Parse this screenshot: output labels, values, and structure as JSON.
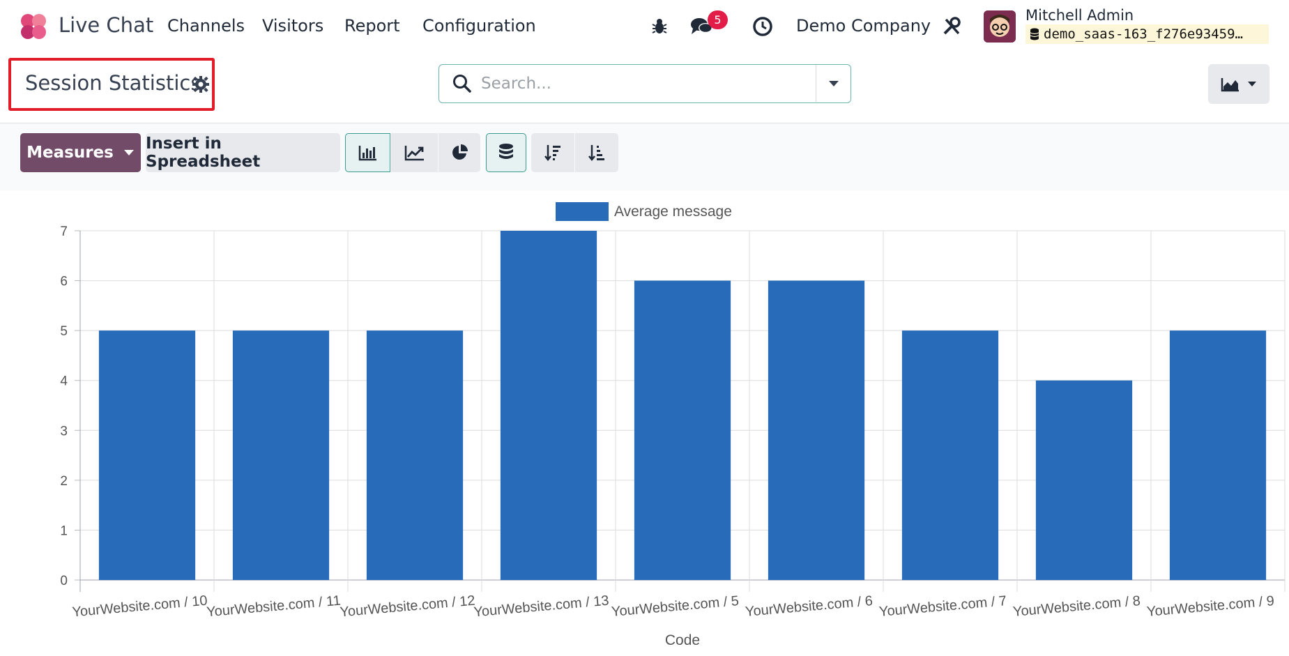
{
  "navbar": {
    "app_name": "Live Chat",
    "menu": [
      "Channels",
      "Visitors",
      "Report",
      "Configuration"
    ],
    "notification_count": "5",
    "company": "Demo Company",
    "user_name": "Mitchell Admin",
    "database": "demo_saas-163_f276e93459…"
  },
  "control_panel": {
    "title": "Session Statistics",
    "search_placeholder": "Search..."
  },
  "toolbar": {
    "measures_label": "Measures",
    "spreadsheet_label": "Insert in Spreadsheet"
  },
  "colors": {
    "bar": "#286bb8",
    "primary": "#714b67",
    "accent": "#3b9b90",
    "badge": "#e11d48"
  },
  "chart_data": {
    "type": "bar",
    "legend": "Average message",
    "xlabel": "Code",
    "ylabel": "",
    "ylim": [
      0,
      7
    ],
    "yticks": [
      0,
      1,
      2,
      3,
      4,
      5,
      6,
      7
    ],
    "grid": true,
    "legend_position": "top-center",
    "categories": [
      "YourWebsite.com / 10",
      "YourWebsite.com / 11",
      "YourWebsite.com / 12",
      "YourWebsite.com / 13",
      "YourWebsite.com / 5",
      "YourWebsite.com / 6",
      "YourWebsite.com / 7",
      "YourWebsite.com / 8",
      "YourWebsite.com / 9"
    ],
    "series": [
      {
        "name": "Average message",
        "values": [
          5,
          5,
          5,
          7,
          6,
          6,
          5,
          4,
          5
        ]
      }
    ]
  }
}
